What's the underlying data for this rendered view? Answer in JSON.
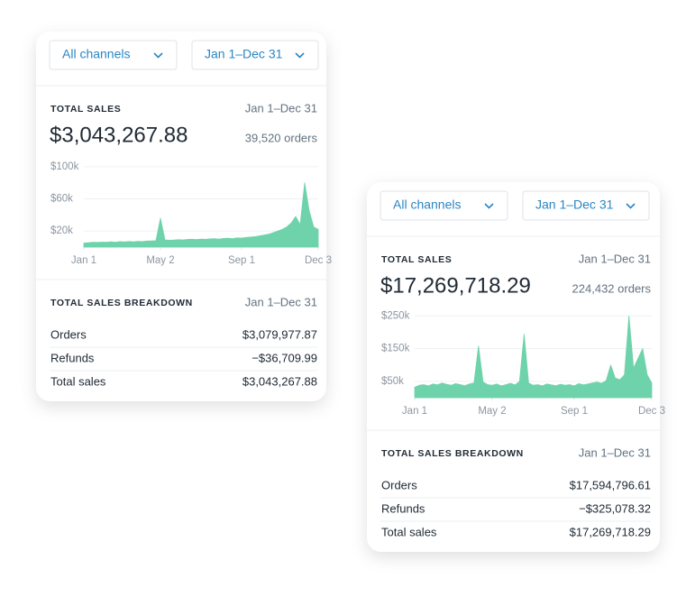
{
  "cards": [
    {
      "filters": {
        "channel": "All channels",
        "date_range": "Jan 1–Dec 31"
      },
      "total_sales": {
        "title": "TOTAL SALES",
        "date_range": "Jan 1–Dec 31",
        "amount": "$3,043,267.88",
        "orders": "39,520 orders"
      },
      "chart_data": {
        "type": "area",
        "color": "#6ed3ab",
        "ylim": [
          0,
          110000
        ],
        "yticks": [
          {
            "value": 20000,
            "label": "$20k"
          },
          {
            "value": 60000,
            "label": "$60k"
          },
          {
            "value": 100000,
            "label": "$100k"
          }
        ],
        "xlim": [
          0,
          52
        ],
        "xticks": [
          {
            "value": 0,
            "label": "Jan 1"
          },
          {
            "value": 17,
            "label": "May 2"
          },
          {
            "value": 35,
            "label": "Sep 1"
          },
          {
            "value": 52,
            "label": "Dec 3"
          }
        ],
        "values": [
          5000,
          5500,
          6000,
          5800,
          6200,
          5900,
          6500,
          6100,
          6800,
          6400,
          7000,
          6600,
          7200,
          6900,
          7500,
          7800,
          8000,
          36000,
          9000,
          8500,
          8800,
          9200,
          9000,
          9500,
          9800,
          9400,
          10000,
          9700,
          10200,
          10500,
          10000,
          10800,
          11000,
          10600,
          11500,
          11200,
          12000,
          12500,
          13000,
          14000,
          15000,
          16000,
          18000,
          20000,
          22000,
          25000,
          30000,
          38000,
          28000,
          80000,
          45000,
          25000,
          22000
        ]
      },
      "breakdown": {
        "title": "TOTAL SALES BREAKDOWN",
        "date_range": "Jan 1–Dec 31",
        "rows": [
          [
            "Orders",
            "$3,079,977.87"
          ],
          [
            "Refunds",
            "−$36,709.99"
          ],
          [
            "Total sales",
            "$3,043,267.88"
          ]
        ]
      }
    },
    {
      "filters": {
        "channel": "All channels",
        "date_range": "Jan 1–Dec 31"
      },
      "total_sales": {
        "title": "TOTAL SALES",
        "date_range": "Jan 1–Dec 31",
        "amount": "$17,269,718.29",
        "orders": "224,432 orders"
      },
      "chart_data": {
        "type": "area",
        "color": "#6ed3ab",
        "ylim": [
          0,
          270000
        ],
        "yticks": [
          {
            "value": 50000,
            "label": "$50k"
          },
          {
            "value": 150000,
            "label": "$150k"
          },
          {
            "value": 250000,
            "label": "$250k"
          }
        ],
        "xlim": [
          0,
          52
        ],
        "xticks": [
          {
            "value": 0,
            "label": "Jan 1"
          },
          {
            "value": 17,
            "label": "May 2"
          },
          {
            "value": 35,
            "label": "Sep 1"
          },
          {
            "value": 52,
            "label": "Dec 3"
          }
        ],
        "values": [
          32000,
          38000,
          40000,
          36000,
          42000,
          39000,
          45000,
          41000,
          38000,
          43000,
          40000,
          37000,
          42000,
          45000,
          158000,
          48000,
          40000,
          38000,
          42000,
          36000,
          40000,
          44000,
          39000,
          50000,
          194000,
          45000,
          38000,
          40000,
          36000,
          42000,
          39000,
          37000,
          41000,
          38000,
          40000,
          36000,
          43000,
          39000,
          42000,
          45000,
          48000,
          44000,
          52000,
          100000,
          60000,
          55000,
          70000,
          250000,
          90000,
          120000,
          150000,
          70000,
          45000
        ]
      },
      "breakdown": {
        "title": "TOTAL SALES BREAKDOWN",
        "date_range": "Jan 1–Dec 31",
        "rows": [
          [
            "Orders",
            "$17,594,796.61"
          ],
          [
            "Refunds",
            "−$325,078.32"
          ],
          [
            "Total sales",
            "$17,269,718.29"
          ]
        ]
      }
    }
  ]
}
